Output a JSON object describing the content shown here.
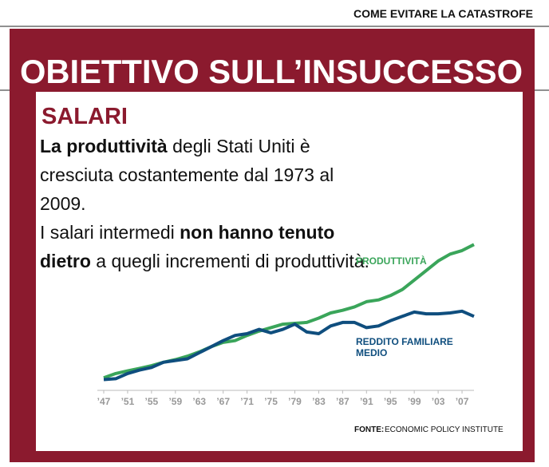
{
  "header": "COME EVITARE LA CATASTROFE",
  "title": "OBIETTIVO SULL’INSUCCESSO",
  "section": "SALARI",
  "paragraphs": [
    [
      {
        "text": "La produttività",
        "bold": true
      },
      {
        "text": " degli Stati Uniti è cresciuta costantemente dal 1973 al 2009.",
        "bold": false
      }
    ],
    [
      {
        "text": "I salari intermedi ",
        "bold": false
      },
      {
        "text": "non hanno tenuto dietro",
        "bold": true
      },
      {
        "text": " a quegli incrementi di produttività.",
        "bold": false
      }
    ]
  ],
  "source_label": "FONTE:",
  "source": "ECONOMIC POLICY INSTITUTE",
  "chart_data": {
    "type": "line",
    "x": [
      1947,
      1949,
      1951,
      1953,
      1955,
      1957,
      1959,
      1961,
      1963,
      1965,
      1967,
      1969,
      1971,
      1973,
      1975,
      1977,
      1979,
      1981,
      1983,
      1985,
      1987,
      1989,
      1991,
      1993,
      1995,
      1997,
      1999,
      2001,
      2003,
      2005,
      2007,
      2009
    ],
    "series": [
      {
        "name": "PRODUTTIVITÀ",
        "color": "#3aa55a",
        "values": [
          100,
          105,
          108,
          111,
          114,
          118,
          121,
          125,
          130,
          136,
          141,
          143,
          149,
          154,
          158,
          162,
          163,
          164,
          169,
          175,
          178,
          182,
          188,
          190,
          195,
          202,
          213,
          224,
          235,
          243,
          247,
          254
        ]
      },
      {
        "name": "REDDITO FAMILIARE MEDIO",
        "color": "#0f4e7e",
        "values": [
          98,
          99,
          105,
          109,
          112,
          118,
          120,
          122,
          129,
          136,
          143,
          149,
          151,
          156,
          152,
          156,
          162,
          153,
          151,
          160,
          164,
          164,
          158,
          160,
          166,
          171,
          176,
          174,
          174,
          175,
          177,
          171
        ]
      }
    ],
    "xlim": [
      1947,
      2009
    ],
    "ylim": [
      80,
      270
    ],
    "xticks": [
      {
        "value": 1947,
        "label": "’47"
      },
      {
        "value": 1951,
        "label": "’51"
      },
      {
        "value": 1955,
        "label": "’55"
      },
      {
        "value": 1959,
        "label": "’59"
      },
      {
        "value": 1963,
        "label": "’63"
      },
      {
        "value": 1967,
        "label": "’67"
      },
      {
        "value": 1971,
        "label": "’71"
      },
      {
        "value": 1975,
        "label": "’75"
      },
      {
        "value": 1979,
        "label": "’79"
      },
      {
        "value": 1983,
        "label": "’83"
      },
      {
        "value": 1987,
        "label": "’87"
      },
      {
        "value": 1991,
        "label": "’91"
      },
      {
        "value": 1995,
        "label": "’95"
      },
      {
        "value": 1999,
        "label": "’99"
      },
      {
        "value": 2003,
        "label": "’03"
      },
      {
        "value": 2007,
        "label": "’07"
      }
    ]
  }
}
